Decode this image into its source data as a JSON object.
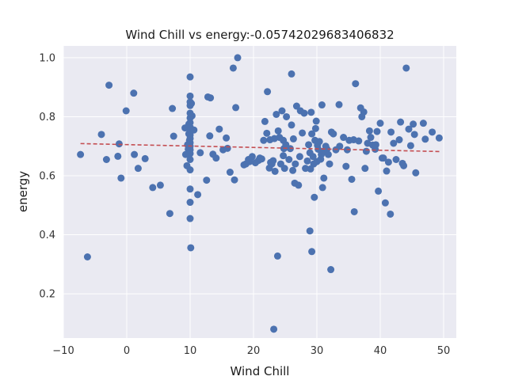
{
  "chart_data": {
    "type": "scatter",
    "title": "Wind Chill vs energy:-0.05742029683406832",
    "xlabel": "Wind Chill",
    "ylabel": "energy",
    "xlim": [
      -10,
      52
    ],
    "ylim": [
      0.05,
      1.04
    ],
    "x_ticks": [
      -10,
      0,
      10,
      20,
      30,
      40,
      50
    ],
    "x_tick_labels": [
      "−10",
      "0",
      "10",
      "20",
      "30",
      "40",
      "50"
    ],
    "y_ticks": [
      0.2,
      0.4,
      0.6,
      0.8,
      1.0
    ],
    "y_tick_labels": [
      "0.2",
      "0.4",
      "0.6",
      "0.8",
      "1.0"
    ],
    "grid": true,
    "background": "#eaeaf2",
    "grid_color": "#ffffff",
    "point_color": "#4c72b0",
    "trend_color": "#c44e52",
    "trend_line": {
      "x": [
        -7.3,
        49.5
      ],
      "y": [
        0.709,
        0.682
      ]
    },
    "points": {
      "x": [
        -7.3,
        -6.2,
        -4.0,
        -3.2,
        -2.8,
        -1.4,
        -1.2,
        -0.9,
        -0.1,
        1.1,
        1.2,
        1.8,
        2.9,
        4.1,
        5.3,
        6.8,
        7.2,
        7.4,
        9.2,
        9.3,
        9.5,
        9.6,
        9.7,
        9.8,
        9.8,
        9.9,
        10.0,
        10.0,
        10.0,
        10.0,
        10.0,
        10.0,
        10.0,
        10.0,
        10.0,
        10.0,
        10.0,
        10.0,
        10.0,
        10.0,
        10.0,
        10.0,
        10.0,
        10.0,
        10.0,
        10.0,
        10.1,
        10.2,
        10.3,
        10.6,
        11.2,
        11.6,
        12.6,
        12.8,
        13.2,
        13.1,
        13.6,
        14.1,
        14.6,
        15.2,
        15.7,
        15.9,
        16.3,
        16.8,
        17.0,
        17.2,
        17.5,
        18.5,
        18.8,
        19.2,
        19.4,
        19.8,
        20.3,
        20.8,
        21.0,
        21.6,
        21.8,
        22.1,
        22.2,
        22.5,
        22.7,
        22.9,
        23.1,
        23.3,
        23.4,
        23.6,
        23.9,
        24.1,
        24.3,
        24.5,
        24.7,
        24.8,
        24.9,
        25.2,
        25.6,
        25.8,
        26.0,
        26.2,
        26.3,
        26.5,
        26.6,
        26.8,
        27.1,
        27.3,
        27.7,
        28.0,
        28.2,
        28.5,
        28.7,
        28.9,
        29.0,
        29.1,
        29.2,
        29.4,
        29.5,
        29.6,
        29.7,
        29.8,
        29.9,
        30.0,
        30.1,
        30.2,
        30.4,
        30.6,
        30.7,
        30.9,
        31.0,
        31.1,
        31.4,
        31.6,
        31.8,
        32.0,
        32.3,
        32.6,
        33.0,
        33.6,
        34.2,
        34.6,
        34.8,
        35.1,
        35.5,
        35.8,
        36.1,
        36.6,
        36.9,
        37.1,
        37.4,
        37.6,
        37.8,
        38.0,
        38.3,
        38.5,
        38.8,
        39.2,
        39.5,
        39.7,
        40.0,
        40.3,
        40.5,
        40.8,
        41.0,
        41.3,
        41.7,
        42.1,
        42.5,
        43.0,
        43.2,
        43.5,
        43.7,
        44.1,
        44.5,
        44.8,
        45.2,
        45.4,
        45.6,
        46.8,
        47.1,
        48.2,
        49.3,
        23.2,
        23.8,
        28.9,
        29.2,
        32.2,
        26.0,
        24.7,
        21.3,
        22.6,
        30.8,
        35.9,
        39.3,
        41.6,
        33.5,
        27.4,
        25.1
      ],
      "y": [
        0.672,
        0.325,
        0.74,
        0.655,
        0.907,
        0.666,
        0.708,
        0.592,
        0.82,
        0.88,
        0.672,
        0.625,
        0.658,
        0.56,
        0.568,
        0.472,
        0.828,
        0.734,
        0.762,
        0.672,
        0.634,
        0.705,
        0.69,
        0.775,
        0.742,
        0.72,
        0.935,
        0.87,
        0.85,
        0.838,
        0.812,
        0.796,
        0.78,
        0.765,
        0.752,
        0.738,
        0.726,
        0.712,
        0.7,
        0.688,
        0.675,
        0.655,
        0.62,
        0.555,
        0.51,
        0.455,
        0.356,
        0.845,
        0.803,
        0.755,
        0.536,
        0.678,
        0.585,
        0.867,
        0.864,
        0.735,
        0.673,
        0.66,
        0.758,
        0.688,
        0.728,
        0.693,
        0.612,
        0.965,
        0.586,
        0.831,
        1.0,
        0.637,
        0.64,
        0.655,
        0.648,
        0.665,
        0.644,
        0.652,
        0.66,
        0.72,
        0.784,
        0.744,
        0.885,
        0.626,
        0.645,
        0.64,
        0.651,
        0.726,
        0.615,
        0.808,
        0.752,
        0.73,
        0.64,
        0.82,
        0.72,
        0.692,
        0.625,
        0.8,
        0.655,
        0.692,
        0.945,
        0.618,
        0.725,
        0.575,
        0.64,
        0.836,
        0.568,
        0.665,
        0.745,
        0.812,
        0.625,
        0.65,
        0.705,
        0.678,
        0.623,
        0.815,
        0.742,
        0.665,
        0.64,
        0.527,
        0.72,
        0.76,
        0.785,
        0.648,
        0.703,
        0.69,
        0.716,
        0.656,
        0.672,
        0.56,
        0.683,
        0.592,
        0.7,
        0.69,
        0.672,
        0.64,
        0.748,
        0.742,
        0.688,
        0.7,
        0.73,
        0.632,
        0.688,
        0.72,
        0.588,
        0.722,
        0.912,
        0.718,
        0.83,
        0.8,
        0.816,
        0.625,
        0.683,
        0.71,
        0.752,
        0.73,
        0.704,
        0.69,
        0.75,
        0.548,
        0.778,
        0.66,
        0.66,
        0.508,
        0.616,
        0.646,
        0.748,
        0.71,
        0.655,
        0.722,
        0.782,
        0.642,
        0.634,
        0.965,
        0.758,
        0.702,
        0.775,
        0.74,
        0.61,
        0.778,
        0.724,
        0.748,
        0.728,
        0.08,
        0.328,
        0.413,
        0.343,
        0.282,
        0.772,
        0.668,
        0.657,
        0.722,
        0.84,
        0.478,
        0.705,
        0.47,
        0.841,
        0.82,
        0.705
      ]
    }
  }
}
